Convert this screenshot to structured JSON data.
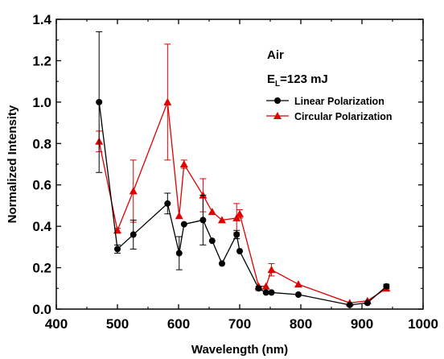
{
  "chart_data": {
    "type": "line",
    "xlabel": "Wavelength (nm)",
    "ylabel": "Normalized Intensity",
    "xlim": [
      400,
      1000
    ],
    "ylim": [
      0.0,
      1.4
    ],
    "xticks": [
      "400",
      "500",
      "600",
      "700",
      "800",
      "900",
      "1000"
    ],
    "yticks": [
      "0.0",
      "0.2",
      "0.4",
      "0.6",
      "0.8",
      "1.0",
      "1.2",
      "1.4"
    ],
    "annotations": {
      "medium": "Air",
      "energy_main": "E",
      "energy_sub": "L",
      "energy_rest": "=123 mJ"
    },
    "legend_position": "upper-right",
    "series": [
      {
        "name": "Linear Polarization",
        "color": "#000000",
        "marker": "circle",
        "points": [
          {
            "x": 470,
            "y": 1.0,
            "err": 0.34
          },
          {
            "x": 500,
            "y": 0.29,
            "err": 0.02
          },
          {
            "x": 526,
            "y": 0.36,
            "err": 0.07
          },
          {
            "x": 582,
            "y": 0.51,
            "err": 0.05
          },
          {
            "x": 601,
            "y": 0.27,
            "err": 0.08
          },
          {
            "x": 609,
            "y": 0.41,
            "err": 0.0
          },
          {
            "x": 640,
            "y": 0.43,
            "err": 0.12
          },
          {
            "x": 655,
            "y": 0.33,
            "err": 0.0
          },
          {
            "x": 671,
            "y": 0.22,
            "err": 0.0
          },
          {
            "x": 695,
            "y": 0.36,
            "err": 0.02
          },
          {
            "x": 700,
            "y": 0.28,
            "err": 0.0
          },
          {
            "x": 731,
            "y": 0.1,
            "err": 0.01
          },
          {
            "x": 743,
            "y": 0.08,
            "err": 0.0
          },
          {
            "x": 752,
            "y": 0.08,
            "err": 0.0
          },
          {
            "x": 796,
            "y": 0.07,
            "err": 0.0
          },
          {
            "x": 880,
            "y": 0.02,
            "err": 0.0
          },
          {
            "x": 909,
            "y": 0.03,
            "err": 0.0
          },
          {
            "x": 940,
            "y": 0.11,
            "err": 0.01
          }
        ]
      },
      {
        "name": "Circular Polarization",
        "color": "#e00000",
        "marker": "triangle",
        "points": [
          {
            "x": 470,
            "y": 0.81,
            "err": 0.05
          },
          {
            "x": 500,
            "y": 0.38,
            "err": 0.01
          },
          {
            "x": 526,
            "y": 0.57,
            "err": 0.15
          },
          {
            "x": 582,
            "y": 1.0,
            "err": 0.28
          },
          {
            "x": 601,
            "y": 0.45,
            "err": 0.0
          },
          {
            "x": 609,
            "y": 0.7,
            "err": 0.02
          },
          {
            "x": 640,
            "y": 0.55,
            "err": 0.08
          },
          {
            "x": 655,
            "y": 0.47,
            "err": 0.0
          },
          {
            "x": 671,
            "y": 0.43,
            "err": 0.0
          },
          {
            "x": 695,
            "y": 0.44,
            "err": 0.07
          },
          {
            "x": 700,
            "y": 0.46,
            "err": 0.02
          },
          {
            "x": 731,
            "y": 0.11,
            "err": 0.0
          },
          {
            "x": 743,
            "y": 0.11,
            "err": 0.0
          },
          {
            "x": 752,
            "y": 0.19,
            "err": 0.03
          },
          {
            "x": 796,
            "y": 0.12,
            "err": 0.0
          },
          {
            "x": 880,
            "y": 0.03,
            "err": 0.0
          },
          {
            "x": 909,
            "y": 0.04,
            "err": 0.0
          },
          {
            "x": 940,
            "y": 0.1,
            "err": 0.01
          }
        ]
      }
    ]
  }
}
